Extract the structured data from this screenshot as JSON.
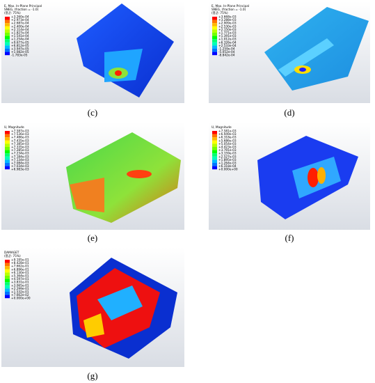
{
  "panels": [
    {
      "label": "(c)",
      "legend_title": [
        "E, Max. In-Plane Principal",
        "SNEG, (fraction = -1.0)",
        "(평균: 75%)"
      ],
      "legend_values": [
        "+3.260e-04",
        "+2.973e-04",
        "+2.687e-04",
        "+2.400e-04",
        "+2.114e-04",
        "+1.827e-04",
        "+1.541e-04",
        "+1.254e-04",
        "+9.677e-05",
        "+6.812e-05",
        "+3.947e-05",
        "+1.082e-05",
        "-1.783e-05"
      ]
    },
    {
      "label": "(d)",
      "legend_title": [
        "E, Max. In-Plane Principal",
        "SNEG, (fraction = -1.0)",
        "(평균: 75%)"
      ],
      "legend_values": [
        "+3.668e-03",
        "+3.288e-03",
        "+2.909e-03",
        "+2.530e-03",
        "+2.150e-03",
        "+1.771e-03",
        "+1.391e-03",
        "+1.012e-03",
        "+6.326e-04",
        "+2.533e-04",
        "-1.259e-04",
        "-5.052e-04",
        "-8.842e-04"
      ]
    },
    {
      "label": "(e)",
      "legend_title": [
        "U, Magnitude"
      ],
      "legend_values": [
        "+7.587e-03",
        "+7.536e-03",
        "+7.486e-03",
        "+7.435e-03",
        "+7.385e-03",
        "+7.335e-03",
        "+7.285e-03",
        "+7.234e-03",
        "+7.184e-03",
        "+7.134e-03",
        "+7.084e-03",
        "+7.034e-03",
        "+6.983e-03"
      ]
    },
    {
      "label": "(f)",
      "legend_title": [
        "U, Magnitude"
      ],
      "legend_values": [
        "+7.581e-03",
        "+6.949e-03",
        "+6.318e-03",
        "+5.686e-03",
        "+5.054e-03",
        "+4.423e-03",
        "+3.791e-03",
        "+3.159e-03",
        "+2.527e-03",
        "+1.895e-03",
        "+1.264e-03",
        "+6.318e-04",
        "+0.000e+00"
      ]
    },
    {
      "label": "(g)",
      "legend_title": [
        "DAMAGET",
        "(평균: 75%)"
      ],
      "legend_values": [
        "+9.195e-01",
        "+8.428e-01",
        "+7.662e-01",
        "+6.896e-01",
        "+6.130e-01",
        "+5.364e-01",
        "+4.597e-01",
        "+3.831e-01",
        "+3.065e-01",
        "+2.299e-01",
        "+1.532e-01",
        "+7.662e-02",
        "+0.000e+00"
      ]
    }
  ]
}
